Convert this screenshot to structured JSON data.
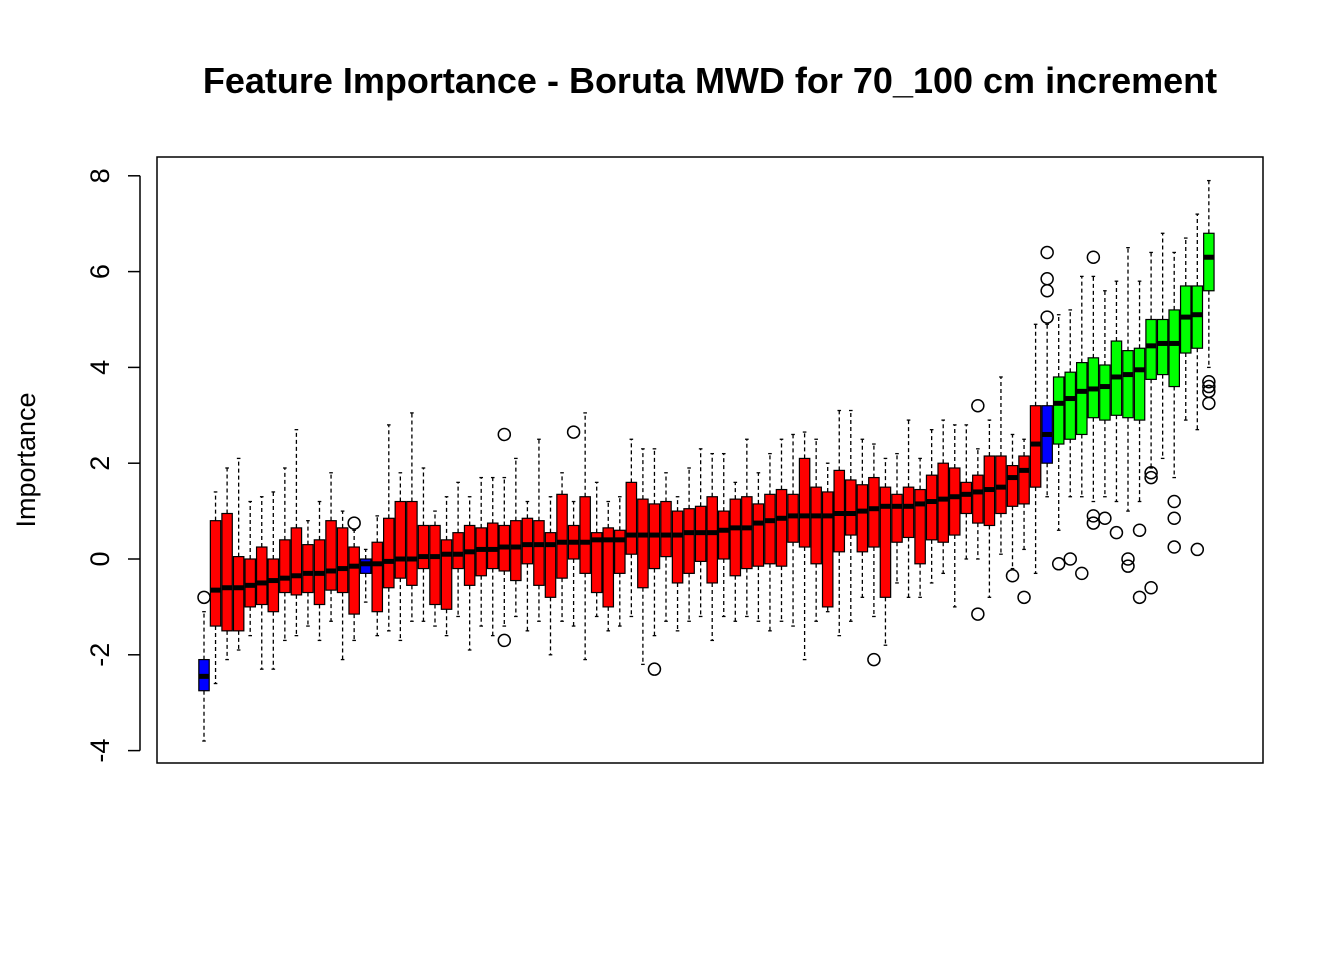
{
  "chart_data": {
    "type": "box",
    "title": "Feature Importance - Boruta MWD for 70_100 cm increment",
    "xlabel": "",
    "ylabel": "Importance",
    "ylim": [
      -4,
      8
    ],
    "yticks": [
      "-4",
      "-2",
      "0",
      "2",
      "4",
      "6",
      "8"
    ],
    "grid": false,
    "colors": {
      "rejected": "#ff0000",
      "shadow": "#0000ff",
      "confirmed": "#00ff00",
      "outline": "#000000"
    },
    "boxes": [
      {
        "status": "shadow",
        "whisker_low": -3.8,
        "q1": -2.75,
        "median": -2.45,
        "q3": -2.1,
        "whisker_high": -1.1,
        "outliers": [
          -0.8
        ]
      },
      {
        "status": "rejected",
        "whisker_low": -2.6,
        "q1": -1.4,
        "median": -0.65,
        "q3": 0.8,
        "whisker_high": 1.4,
        "outliers": []
      },
      {
        "status": "rejected",
        "whisker_low": -2.1,
        "q1": -1.5,
        "median": -0.6,
        "q3": 0.95,
        "whisker_high": 1.9,
        "outliers": []
      },
      {
        "status": "rejected",
        "whisker_low": -1.9,
        "q1": -1.5,
        "median": -0.6,
        "q3": 0.05,
        "whisker_high": 2.1,
        "outliers": []
      },
      {
        "status": "rejected",
        "whisker_low": -1.6,
        "q1": -1.0,
        "median": -0.55,
        "q3": 0.0,
        "whisker_high": 1.2,
        "outliers": []
      },
      {
        "status": "rejected",
        "whisker_low": -2.3,
        "q1": -0.95,
        "median": -0.5,
        "q3": 0.25,
        "whisker_high": 1.3,
        "outliers": []
      },
      {
        "status": "rejected",
        "whisker_low": -2.3,
        "q1": -1.1,
        "median": -0.45,
        "q3": 0.0,
        "whisker_high": 1.4,
        "outliers": []
      },
      {
        "status": "rejected",
        "whisker_low": -1.7,
        "q1": -0.7,
        "median": -0.4,
        "q3": 0.4,
        "whisker_high": 1.9,
        "outliers": []
      },
      {
        "status": "rejected",
        "whisker_low": -1.6,
        "q1": -0.75,
        "median": -0.35,
        "q3": 0.65,
        "whisker_high": 2.7,
        "outliers": []
      },
      {
        "status": "rejected",
        "whisker_low": -1.4,
        "q1": -0.7,
        "median": -0.3,
        "q3": 0.3,
        "whisker_high": 0.8,
        "outliers": []
      },
      {
        "status": "rejected",
        "whisker_low": -1.7,
        "q1": -0.95,
        "median": -0.3,
        "q3": 0.4,
        "whisker_high": 1.2,
        "outliers": []
      },
      {
        "status": "rejected",
        "whisker_low": -1.3,
        "q1": -0.65,
        "median": -0.25,
        "q3": 0.8,
        "whisker_high": 1.8,
        "outliers": []
      },
      {
        "status": "rejected",
        "whisker_low": -2.1,
        "q1": -0.7,
        "median": -0.2,
        "q3": 0.65,
        "whisker_high": 1.0,
        "outliers": []
      },
      {
        "status": "rejected",
        "whisker_low": -1.7,
        "q1": -1.15,
        "median": -0.15,
        "q3": 0.25,
        "whisker_high": 0.6,
        "outliers": [
          0.75
        ]
      },
      {
        "status": "shadow",
        "whisker_low": -0.9,
        "q1": -0.3,
        "median": -0.1,
        "q3": 0.0,
        "whisker_high": 0.2,
        "outliers": []
      },
      {
        "status": "rejected",
        "whisker_low": -1.6,
        "q1": -1.1,
        "median": -0.1,
        "q3": 0.35,
        "whisker_high": 0.9,
        "outliers": []
      },
      {
        "status": "rejected",
        "whisker_low": -1.5,
        "q1": -0.6,
        "median": -0.05,
        "q3": 0.85,
        "whisker_high": 2.8,
        "outliers": []
      },
      {
        "status": "rejected",
        "whisker_low": -1.7,
        "q1": -0.4,
        "median": 0.0,
        "q3": 1.2,
        "whisker_high": 1.8,
        "outliers": []
      },
      {
        "status": "rejected",
        "whisker_low": -1.3,
        "q1": -0.55,
        "median": 0.0,
        "q3": 1.2,
        "whisker_high": 3.05,
        "outliers": []
      },
      {
        "status": "rejected",
        "whisker_low": -1.3,
        "q1": -0.2,
        "median": 0.05,
        "q3": 0.7,
        "whisker_high": 1.9,
        "outliers": []
      },
      {
        "status": "rejected",
        "whisker_low": -1.4,
        "q1": -0.95,
        "median": 0.05,
        "q3": 0.7,
        "whisker_high": 1.0,
        "outliers": []
      },
      {
        "status": "rejected",
        "whisker_low": -1.6,
        "q1": -1.05,
        "median": 0.1,
        "q3": 0.4,
        "whisker_high": 1.3,
        "outliers": []
      },
      {
        "status": "rejected",
        "whisker_low": -1.2,
        "q1": -0.2,
        "median": 0.1,
        "q3": 0.55,
        "whisker_high": 1.6,
        "outliers": []
      },
      {
        "status": "rejected",
        "whisker_low": -1.9,
        "q1": -0.55,
        "median": 0.15,
        "q3": 0.7,
        "whisker_high": 1.3,
        "outliers": []
      },
      {
        "status": "rejected",
        "whisker_low": -1.4,
        "q1": -0.35,
        "median": 0.2,
        "q3": 0.65,
        "whisker_high": 1.7,
        "outliers": []
      },
      {
        "status": "rejected",
        "whisker_low": -1.6,
        "q1": -0.2,
        "median": 0.2,
        "q3": 0.75,
        "whisker_high": 1.7,
        "outliers": []
      },
      {
        "status": "rejected",
        "whisker_low": -1.4,
        "q1": -0.25,
        "median": 0.25,
        "q3": 0.7,
        "whisker_high": 1.7,
        "outliers": [
          2.6,
          -1.7
        ]
      },
      {
        "status": "rejected",
        "whisker_low": -1.2,
        "q1": -0.45,
        "median": 0.25,
        "q3": 0.8,
        "whisker_high": 2.1,
        "outliers": []
      },
      {
        "status": "rejected",
        "whisker_low": -1.5,
        "q1": -0.1,
        "median": 0.3,
        "q3": 0.85,
        "whisker_high": 1.2,
        "outliers": []
      },
      {
        "status": "rejected",
        "whisker_low": -1.3,
        "q1": -0.55,
        "median": 0.3,
        "q3": 0.8,
        "whisker_high": 2.5,
        "outliers": []
      },
      {
        "status": "rejected",
        "whisker_low": -2.0,
        "q1": -0.8,
        "median": 0.3,
        "q3": 0.55,
        "whisker_high": 1.3,
        "outliers": []
      },
      {
        "status": "rejected",
        "whisker_low": -1.3,
        "q1": -0.4,
        "median": 0.35,
        "q3": 1.35,
        "whisker_high": 1.8,
        "outliers": []
      },
      {
        "status": "rejected",
        "whisker_low": -1.4,
        "q1": 0.0,
        "median": 0.35,
        "q3": 0.7,
        "whisker_high": 1.2,
        "outliers": [
          2.65
        ]
      },
      {
        "status": "rejected",
        "whisker_low": -2.1,
        "q1": -0.3,
        "median": 0.35,
        "q3": 1.3,
        "whisker_high": 3.05,
        "outliers": []
      },
      {
        "status": "rejected",
        "whisker_low": -1.2,
        "q1": -0.7,
        "median": 0.4,
        "q3": 0.55,
        "whisker_high": 1.6,
        "outliers": []
      },
      {
        "status": "rejected",
        "whisker_low": -1.5,
        "q1": -1.0,
        "median": 0.4,
        "q3": 0.65,
        "whisker_high": 1.2,
        "outliers": []
      },
      {
        "status": "rejected",
        "whisker_low": -1.4,
        "q1": -0.3,
        "median": 0.4,
        "q3": 0.6,
        "whisker_high": 1.3,
        "outliers": []
      },
      {
        "status": "rejected",
        "whisker_low": -1.2,
        "q1": 0.1,
        "median": 0.5,
        "q3": 1.6,
        "whisker_high": 2.5,
        "outliers": []
      },
      {
        "status": "rejected",
        "whisker_low": -2.2,
        "q1": -0.6,
        "median": 0.5,
        "q3": 1.25,
        "whisker_high": 2.3,
        "outliers": []
      },
      {
        "status": "rejected",
        "whisker_low": -1.6,
        "q1": -0.2,
        "median": 0.5,
        "q3": 1.15,
        "whisker_high": 2.3,
        "outliers": [
          -2.3
        ]
      },
      {
        "status": "rejected",
        "whisker_low": -1.3,
        "q1": 0.05,
        "median": 0.5,
        "q3": 1.2,
        "whisker_high": 1.8,
        "outliers": []
      },
      {
        "status": "rejected",
        "whisker_low": -1.5,
        "q1": -0.5,
        "median": 0.5,
        "q3": 1.0,
        "whisker_high": 1.3,
        "outliers": []
      },
      {
        "status": "rejected",
        "whisker_low": -1.3,
        "q1": -0.3,
        "median": 0.55,
        "q3": 1.05,
        "whisker_high": 1.9,
        "outliers": []
      },
      {
        "status": "rejected",
        "whisker_low": -1.2,
        "q1": -0.05,
        "median": 0.55,
        "q3": 1.1,
        "whisker_high": 2.3,
        "outliers": []
      },
      {
        "status": "rejected",
        "whisker_low": -1.7,
        "q1": -0.5,
        "median": 0.55,
        "q3": 1.3,
        "whisker_high": 2.2,
        "outliers": []
      },
      {
        "status": "rejected",
        "whisker_low": -1.2,
        "q1": 0.0,
        "median": 0.6,
        "q3": 1.0,
        "whisker_high": 2.2,
        "outliers": []
      },
      {
        "status": "rejected",
        "whisker_low": -1.3,
        "q1": -0.35,
        "median": 0.65,
        "q3": 1.25,
        "whisker_high": 1.6,
        "outliers": []
      },
      {
        "status": "rejected",
        "whisker_low": -1.2,
        "q1": -0.2,
        "median": 0.65,
        "q3": 1.3,
        "whisker_high": 2.5,
        "outliers": []
      },
      {
        "status": "rejected",
        "whisker_low": -1.3,
        "q1": -0.15,
        "median": 0.75,
        "q3": 1.15,
        "whisker_high": 1.8,
        "outliers": []
      },
      {
        "status": "rejected",
        "whisker_low": -1.5,
        "q1": -0.1,
        "median": 0.8,
        "q3": 1.35,
        "whisker_high": 2.2,
        "outliers": []
      },
      {
        "status": "rejected",
        "whisker_low": -1.3,
        "q1": -0.15,
        "median": 0.85,
        "q3": 1.45,
        "whisker_high": 2.5,
        "outliers": []
      },
      {
        "status": "rejected",
        "whisker_low": -1.4,
        "q1": 0.35,
        "median": 0.9,
        "q3": 1.35,
        "whisker_high": 2.6,
        "outliers": []
      },
      {
        "status": "rejected",
        "whisker_low": -2.1,
        "q1": 0.25,
        "median": 0.9,
        "q3": 2.1,
        "whisker_high": 2.65,
        "outliers": []
      },
      {
        "status": "rejected",
        "whisker_low": -1.3,
        "q1": -0.1,
        "median": 0.9,
        "q3": 1.5,
        "whisker_high": 2.5,
        "outliers": []
      },
      {
        "status": "rejected",
        "whisker_low": -1.1,
        "q1": -1.0,
        "median": 0.9,
        "q3": 1.4,
        "whisker_high": 2.0,
        "outliers": []
      },
      {
        "status": "rejected",
        "whisker_low": -1.6,
        "q1": 0.15,
        "median": 0.95,
        "q3": 1.85,
        "whisker_high": 3.1,
        "outliers": []
      },
      {
        "status": "rejected",
        "whisker_low": -1.3,
        "q1": 0.5,
        "median": 0.95,
        "q3": 1.65,
        "whisker_high": 3.1,
        "outliers": []
      },
      {
        "status": "rejected",
        "whisker_low": -0.8,
        "q1": 0.15,
        "median": 1.0,
        "q3": 1.55,
        "whisker_high": 2.5,
        "outliers": []
      },
      {
        "status": "rejected",
        "whisker_low": -1.2,
        "q1": 0.25,
        "median": 1.05,
        "q3": 1.7,
        "whisker_high": 2.4,
        "outliers": [
          -2.1
        ]
      },
      {
        "status": "rejected",
        "whisker_low": -1.8,
        "q1": -0.8,
        "median": 1.1,
        "q3": 1.5,
        "whisker_high": 2.1,
        "outliers": []
      },
      {
        "status": "rejected",
        "whisker_low": -0.5,
        "q1": 0.35,
        "median": 1.1,
        "q3": 1.35,
        "whisker_high": 2.2,
        "outliers": []
      },
      {
        "status": "rejected",
        "whisker_low": -0.8,
        "q1": 0.45,
        "median": 1.1,
        "q3": 1.5,
        "whisker_high": 2.9,
        "outliers": []
      },
      {
        "status": "rejected",
        "whisker_low": -0.8,
        "q1": -0.1,
        "median": 1.15,
        "q3": 1.45,
        "whisker_high": 2.1,
        "outliers": []
      },
      {
        "status": "rejected",
        "whisker_low": -0.5,
        "q1": 0.4,
        "median": 1.2,
        "q3": 1.75,
        "whisker_high": 2.7,
        "outliers": []
      },
      {
        "status": "rejected",
        "whisker_low": -0.3,
        "q1": 0.35,
        "median": 1.25,
        "q3": 2.0,
        "whisker_high": 2.9,
        "outliers": []
      },
      {
        "status": "rejected",
        "whisker_low": -1.0,
        "q1": 0.5,
        "median": 1.3,
        "q3": 1.9,
        "whisker_high": 2.8,
        "outliers": []
      },
      {
        "status": "rejected",
        "whisker_low": 0.0,
        "q1": 0.95,
        "median": 1.35,
        "q3": 1.6,
        "whisker_high": 2.8,
        "outliers": []
      },
      {
        "status": "rejected",
        "whisker_low": 0.0,
        "q1": 0.75,
        "median": 1.4,
        "q3": 1.75,
        "whisker_high": 2.3,
        "outliers": [
          3.2,
          -1.15
        ]
      },
      {
        "status": "rejected",
        "whisker_low": -0.8,
        "q1": 0.7,
        "median": 1.45,
        "q3": 2.15,
        "whisker_high": 2.9,
        "outliers": []
      },
      {
        "status": "rejected",
        "whisker_low": 0.1,
        "q1": 0.95,
        "median": 1.5,
        "q3": 2.15,
        "whisker_high": 3.8,
        "outliers": []
      },
      {
        "status": "rejected",
        "whisker_low": -0.2,
        "q1": 1.1,
        "median": 1.7,
        "q3": 1.95,
        "whisker_high": 2.6,
        "outliers": [
          -0.35
        ]
      },
      {
        "status": "rejected",
        "whisker_low": 0.2,
        "q1": 1.15,
        "median": 1.85,
        "q3": 2.15,
        "whisker_high": 2.5,
        "outliers": [
          -0.8
        ]
      },
      {
        "status": "rejected",
        "whisker_low": -0.3,
        "q1": 1.5,
        "median": 2.4,
        "q3": 3.2,
        "whisker_high": 4.9,
        "outliers": []
      },
      {
        "status": "shadow",
        "whisker_low": 1.3,
        "q1": 2.0,
        "median": 2.6,
        "q3": 3.2,
        "whisker_high": 4.9,
        "outliers": [
          6.4,
          5.85,
          5.6,
          5.05
        ]
      },
      {
        "status": "confirmed",
        "whisker_low": 0.6,
        "q1": 2.4,
        "median": 3.25,
        "q3": 3.8,
        "whisker_high": 5.1,
        "outliers": [
          -0.1
        ]
      },
      {
        "status": "confirmed",
        "whisker_low": 1.3,
        "q1": 2.5,
        "median": 3.35,
        "q3": 3.9,
        "whisker_high": 5.2,
        "outliers": [
          0.0
        ]
      },
      {
        "status": "confirmed",
        "whisker_low": 1.3,
        "q1": 2.6,
        "median": 3.5,
        "q3": 4.1,
        "whisker_high": 5.9,
        "outliers": [
          -0.3
        ]
      },
      {
        "status": "confirmed",
        "whisker_low": 1.2,
        "q1": 2.95,
        "median": 3.55,
        "q3": 4.2,
        "whisker_high": 5.9,
        "outliers": [
          6.3,
          0.9,
          0.75
        ]
      },
      {
        "status": "confirmed",
        "whisker_low": 1.3,
        "q1": 2.9,
        "median": 3.6,
        "q3": 4.05,
        "whisker_high": 5.6,
        "outliers": [
          0.85
        ]
      },
      {
        "status": "confirmed",
        "whisker_low": 1.2,
        "q1": 3.0,
        "median": 3.8,
        "q3": 4.55,
        "whisker_high": 5.8,
        "outliers": [
          0.55
        ]
      },
      {
        "status": "confirmed",
        "whisker_low": 1.0,
        "q1": 2.95,
        "median": 3.85,
        "q3": 4.35,
        "whisker_high": 6.5,
        "outliers": [
          0.0,
          -0.15
        ]
      },
      {
        "status": "confirmed",
        "whisker_low": 1.2,
        "q1": 2.9,
        "median": 3.95,
        "q3": 4.4,
        "whisker_high": 5.8,
        "outliers": [
          0.6,
          -0.8
        ]
      },
      {
        "status": "confirmed",
        "whisker_low": 1.9,
        "q1": 3.75,
        "median": 4.45,
        "q3": 5.0,
        "whisker_high": 6.4,
        "outliers": [
          1.8,
          1.7,
          -0.6
        ]
      },
      {
        "status": "confirmed",
        "whisker_low": 2.1,
        "q1": 3.85,
        "median": 4.5,
        "q3": 5.0,
        "whisker_high": 6.8,
        "outliers": []
      },
      {
        "status": "confirmed",
        "whisker_low": 1.7,
        "q1": 3.6,
        "median": 4.5,
        "q3": 5.2,
        "whisker_high": 6.4,
        "outliers": [
          1.2,
          0.85,
          0.25
        ]
      },
      {
        "status": "confirmed",
        "whisker_low": 2.9,
        "q1": 4.3,
        "median": 5.05,
        "q3": 5.7,
        "whisker_high": 6.7,
        "outliers": []
      },
      {
        "status": "confirmed",
        "whisker_low": 2.7,
        "q1": 4.4,
        "median": 5.1,
        "q3": 5.7,
        "whisker_high": 7.2,
        "outliers": [
          0.2
        ]
      },
      {
        "status": "confirmed",
        "whisker_low": 4.0,
        "q1": 5.6,
        "median": 6.3,
        "q3": 6.8,
        "whisker_high": 7.9,
        "outliers": [
          3.7,
          3.6,
          3.5,
          3.25
        ]
      }
    ]
  }
}
